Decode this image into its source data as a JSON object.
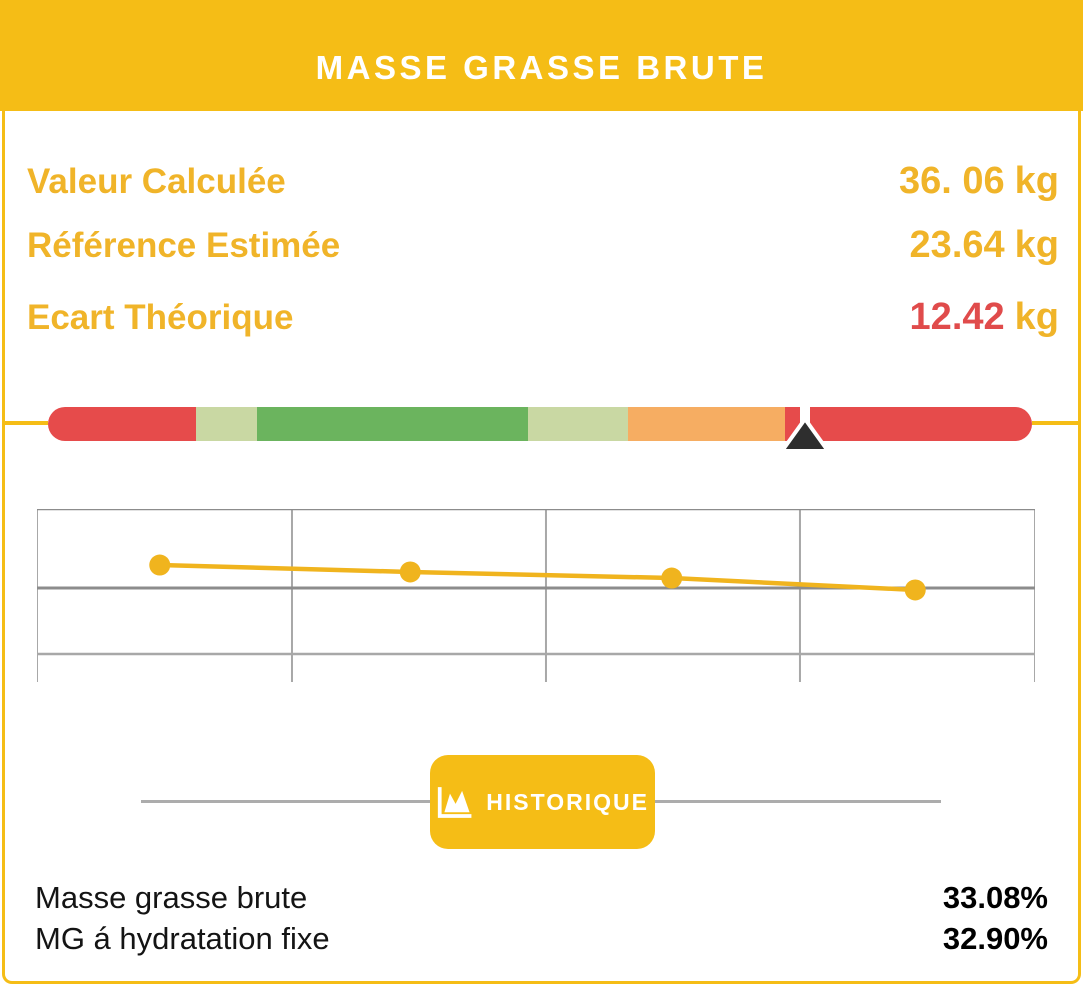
{
  "header": {
    "title": "MASSE GRASSE BRUTE"
  },
  "metrics": [
    {
      "label": "Valeur Calculée",
      "value": "36. 06",
      "unit": "kg",
      "value_color": "yellow"
    },
    {
      "label": "Référence Estimée",
      "value": "23.64",
      "unit": "kg",
      "value_color": "yellow"
    },
    {
      "label": "Ecart Théorique",
      "value": "12.42",
      "unit": "kg",
      "value_color": "red"
    }
  ],
  "gauge": {
    "segments": [
      {
        "color": "red",
        "width_pct": 15.04
      },
      {
        "color": "lightgreen",
        "width_pct": 6.2
      },
      {
        "color": "green",
        "width_pct": 27.54
      },
      {
        "color": "lightgreen",
        "width_pct": 10.16
      },
      {
        "color": "orange",
        "width_pct": 15.96
      },
      {
        "color": "red",
        "width_pct": 25.1
      }
    ],
    "marker_pct": 76.9
  },
  "chart_data": {
    "type": "line",
    "title": "",
    "xlabel": "",
    "ylabel": "",
    "axis_labels_shown": false,
    "legend": "none",
    "grid": {
      "vertical_fracs": [
        0,
        0.2555,
        0.51,
        0.7645,
        1.0
      ],
      "horizontal_fracs": [
        0.0,
        0.457,
        0.838
      ]
    },
    "series": [
      {
        "name": "historique",
        "points": [
          {
            "x_frac": 0.123,
            "y_frac": 0.324
          },
          {
            "x_frac": 0.374,
            "y_frac": 0.364
          },
          {
            "x_frac": 0.636,
            "y_frac": 0.399
          },
          {
            "x_frac": 0.88,
            "y_frac": 0.468
          }
        ]
      }
    ],
    "line_color": "#F0B41E",
    "point_color": "#F0B41E"
  },
  "history_button": {
    "label": "HISTORIQUE",
    "icon": "area-chart-icon"
  },
  "footer_rows": [
    {
      "label": "Masse grasse brute",
      "value": "33.08%"
    },
    {
      "label": "MG á hydratation fixe",
      "value": "32.90%"
    }
  ],
  "colors": {
    "yellow": "#F5BD16",
    "yellowText": "#F0B429",
    "redText": "#E04B4B",
    "red": "#E64B4B",
    "lightgreen": "#C9D8A3",
    "green": "#6BB45E",
    "orange": "#F6AD62",
    "markerBlack": "#2E2E2E",
    "dividerGray": "#ACACAC",
    "gridDark": "#8C8C8C",
    "gridLight": "#A8A8A8"
  }
}
